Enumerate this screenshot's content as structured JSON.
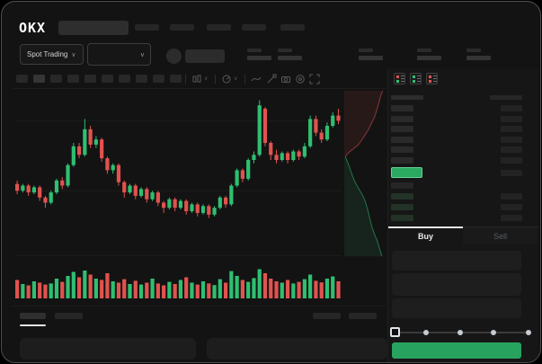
{
  "window": {
    "brand_logo": "OKX"
  },
  "header": {
    "market_type_selector": "Spot Trading"
  },
  "icons": {
    "chevron_down": "∨"
  },
  "order_panel": {
    "buy_tab_label": "Buy",
    "sell_tab_label": "Sell",
    "view_toggle_colors": [
      [
        "#e0534f",
        "#2fbf71"
      ],
      [
        "#2fbf71",
        "#2fbf71"
      ],
      [
        "#e0534f",
        "#e0534f"
      ]
    ]
  },
  "colors": {
    "up": "#2fbf71",
    "down": "#e0534f",
    "accent_button": "#27a35f",
    "price_highlight_bg": "#2aa960",
    "price_highlight_border": "#67d398",
    "text_primary": "#e9ebee",
    "text_muted": "#565d66",
    "skeleton": "#262626",
    "skeleton_light": "#2e2e2e",
    "bid_bar": "#223227",
    "grid": "#1d1d1d"
  },
  "skeleton": {
    "nav_item_lefts": [
      148,
      187,
      228,
      267,
      310
    ],
    "timeframe_buttons": 10,
    "stat_group_lefts": [
      273,
      307,
      397,
      462,
      517
    ],
    "ask_rows": 6,
    "bid_rows": 4,
    "slider_dot_lefts": [
      469,
      507,
      544,
      583
    ],
    "bottom_tab_lefts": [
      20,
      59
    ],
    "bottom_right_tab_lefts": [
      346,
      386
    ],
    "bottom_panels": [
      [
        20,
        196
      ],
      [
        228,
        201
      ]
    ]
  },
  "chart_data": {
    "type": "candlestick",
    "title": "",
    "xlabel": "",
    "ylabel": "",
    "note": "Skeleton trading UI: no numeric axis labels visible; values normalized 0-100 of chart height",
    "up_color": "#2fbf71",
    "down_color": "#e0534f",
    "gridline_values": [
      83,
      42,
      4
    ],
    "candles_ochl": [
      [
        46,
        42,
        48,
        40
      ],
      [
        42,
        45,
        46,
        41
      ],
      [
        45,
        41,
        46,
        39
      ],
      [
        41,
        44,
        45,
        40
      ],
      [
        44,
        38,
        45,
        36
      ],
      [
        38,
        35,
        39,
        32
      ],
      [
        35,
        41,
        42,
        34
      ],
      [
        41,
        48,
        49,
        40
      ],
      [
        48,
        45,
        50,
        43
      ],
      [
        45,
        57,
        58,
        44
      ],
      [
        57,
        68,
        70,
        56
      ],
      [
        68,
        63,
        70,
        61
      ],
      [
        63,
        78,
        84,
        62
      ],
      [
        78,
        69,
        80,
        67
      ],
      [
        69,
        72,
        74,
        67
      ],
      [
        72,
        61,
        73,
        59
      ],
      [
        61,
        54,
        62,
        52
      ],
      [
        54,
        57,
        58,
        52
      ],
      [
        57,
        47,
        58,
        45
      ],
      [
        47,
        41,
        48,
        38
      ],
      [
        41,
        45,
        46,
        40
      ],
      [
        45,
        39,
        46,
        37
      ],
      [
        39,
        43,
        44,
        38
      ],
      [
        43,
        37,
        44,
        35
      ],
      [
        37,
        41,
        42,
        36
      ],
      [
        41,
        35,
        42,
        33
      ],
      [
        35,
        32,
        36,
        29
      ],
      [
        32,
        37,
        38,
        31
      ],
      [
        37,
        32,
        38,
        30
      ],
      [
        32,
        36,
        37,
        31
      ],
      [
        36,
        30,
        37,
        28
      ],
      [
        30,
        34,
        35,
        29
      ],
      [
        34,
        29,
        35,
        27
      ],
      [
        29,
        33,
        34,
        28
      ],
      [
        33,
        28,
        34,
        26
      ],
      [
        28,
        32,
        33,
        27
      ],
      [
        32,
        38,
        39,
        31
      ],
      [
        38,
        34,
        39,
        32
      ],
      [
        34,
        45,
        46,
        33
      ],
      [
        45,
        54,
        55,
        44
      ],
      [
        54,
        49,
        55,
        47
      ],
      [
        49,
        60,
        61,
        48
      ],
      [
        60,
        63,
        65,
        58
      ],
      [
        63,
        92,
        95,
        62
      ],
      [
        90,
        70,
        91,
        68
      ],
      [
        70,
        63,
        71,
        60
      ],
      [
        63,
        60,
        66,
        58
      ],
      [
        60,
        64,
        65,
        59
      ],
      [
        64,
        60,
        65,
        58
      ],
      [
        60,
        65,
        66,
        59
      ],
      [
        65,
        62,
        66,
        60
      ],
      [
        62,
        68,
        70,
        61
      ],
      [
        68,
        84,
        86,
        67
      ],
      [
        84,
        76,
        86,
        74
      ],
      [
        76,
        72,
        78,
        70
      ],
      [
        72,
        80,
        82,
        71
      ],
      [
        80,
        86,
        88,
        79
      ],
      [
        86,
        83,
        90,
        81
      ]
    ],
    "volumes": [
      55,
      40,
      35,
      50,
      45,
      38,
      42,
      60,
      48,
      70,
      85,
      65,
      90,
      75,
      60,
      55,
      80,
      50,
      45,
      58,
      40,
      52,
      38,
      45,
      60,
      42,
      35,
      48,
      40,
      55,
      65,
      45,
      38,
      50,
      42,
      36,
      58,
      45,
      88,
      70,
      55,
      48,
      62,
      95,
      80,
      60,
      50,
      45,
      55,
      42,
      48,
      58,
      75,
      52,
      46,
      60,
      68,
      50
    ]
  },
  "depth_chart": {
    "type": "area",
    "orientation": "vertical",
    "ask_color": "#e0534f",
    "bid_color": "#2fbf71",
    "asks": [
      [
        93,
        1
      ],
      [
        88,
        4
      ],
      [
        84,
        8
      ],
      [
        79,
        12
      ],
      [
        74,
        16
      ],
      [
        66,
        20
      ],
      [
        58,
        24
      ],
      [
        50,
        27
      ],
      [
        42,
        30
      ],
      [
        33,
        33
      ],
      [
        22,
        35
      ],
      [
        12,
        37
      ],
      [
        4,
        39
      ],
      [
        3,
        40
      ]
    ],
    "bids": [
      [
        3,
        40
      ],
      [
        10,
        44
      ],
      [
        17,
        49
      ],
      [
        25,
        54
      ],
      [
        34,
        58
      ],
      [
        44,
        62
      ],
      [
        51,
        66
      ],
      [
        57,
        71
      ],
      [
        62,
        76
      ],
      [
        67,
        81
      ],
      [
        73,
        85
      ],
      [
        80,
        89
      ],
      [
        86,
        94
      ],
      [
        91,
        98
      ]
    ]
  }
}
